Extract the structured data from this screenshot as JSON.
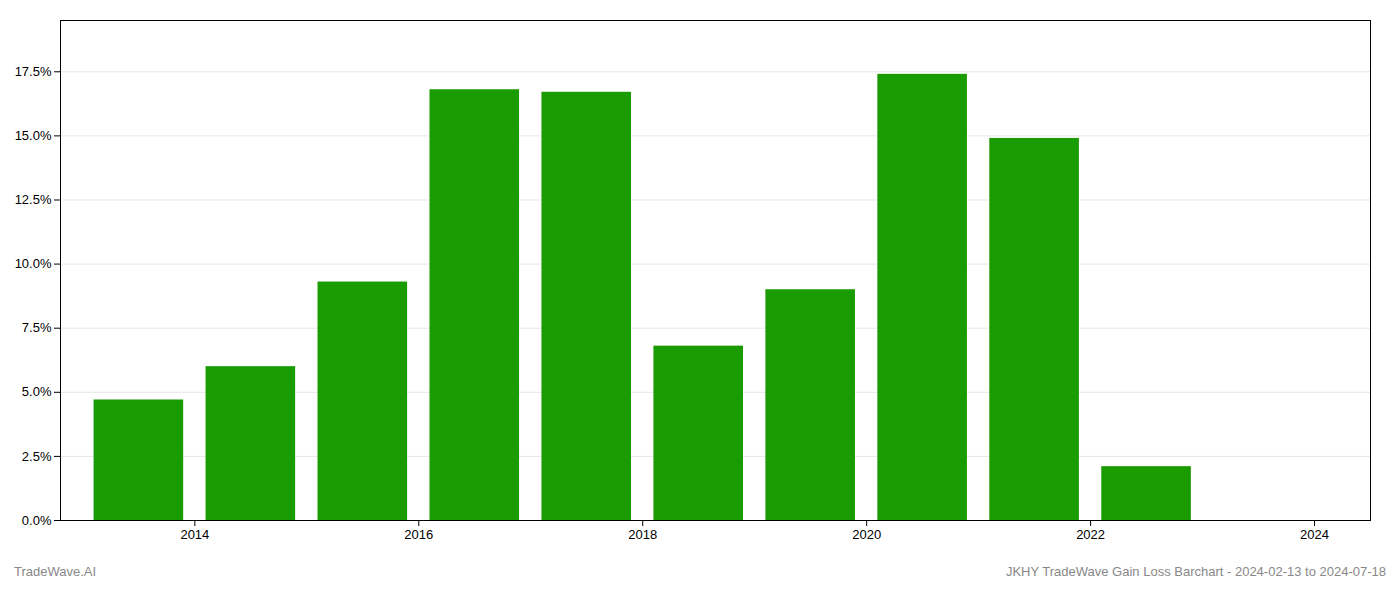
{
  "chart_data": {
    "type": "bar",
    "x": [
      2013.5,
      2014.5,
      2015.5,
      2016.5,
      2017.5,
      2018.5,
      2019.5,
      2020.5,
      2021.5,
      2022.5
    ],
    "values": [
      0.047,
      0.06,
      0.093,
      0.168,
      0.167,
      0.068,
      0.09,
      0.174,
      0.149,
      0.021
    ],
    "color": "#1a9c00",
    "ylim": [
      0,
      0.195
    ],
    "yticks": [
      {
        "value": 0.0,
        "label": "0.0%"
      },
      {
        "value": 0.025,
        "label": "2.5%"
      },
      {
        "value": 0.05,
        "label": "5.0%"
      },
      {
        "value": 0.075,
        "label": "7.5%"
      },
      {
        "value": 0.1,
        "label": "10.0%"
      },
      {
        "value": 0.125,
        "label": "12.5%"
      },
      {
        "value": 0.15,
        "label": "15.0%"
      },
      {
        "value": 0.175,
        "label": "17.5%"
      }
    ],
    "xlim": [
      2012.8,
      2024.5
    ],
    "xticks": [
      2014,
      2016,
      2018,
      2020,
      2022,
      2024
    ],
    "grid": true,
    "annotations": [
      "TradeWave.AI",
      "JKHY TradeWave Gain Loss Barchart - 2024-02-13 to 2024-07-18"
    ]
  }
}
